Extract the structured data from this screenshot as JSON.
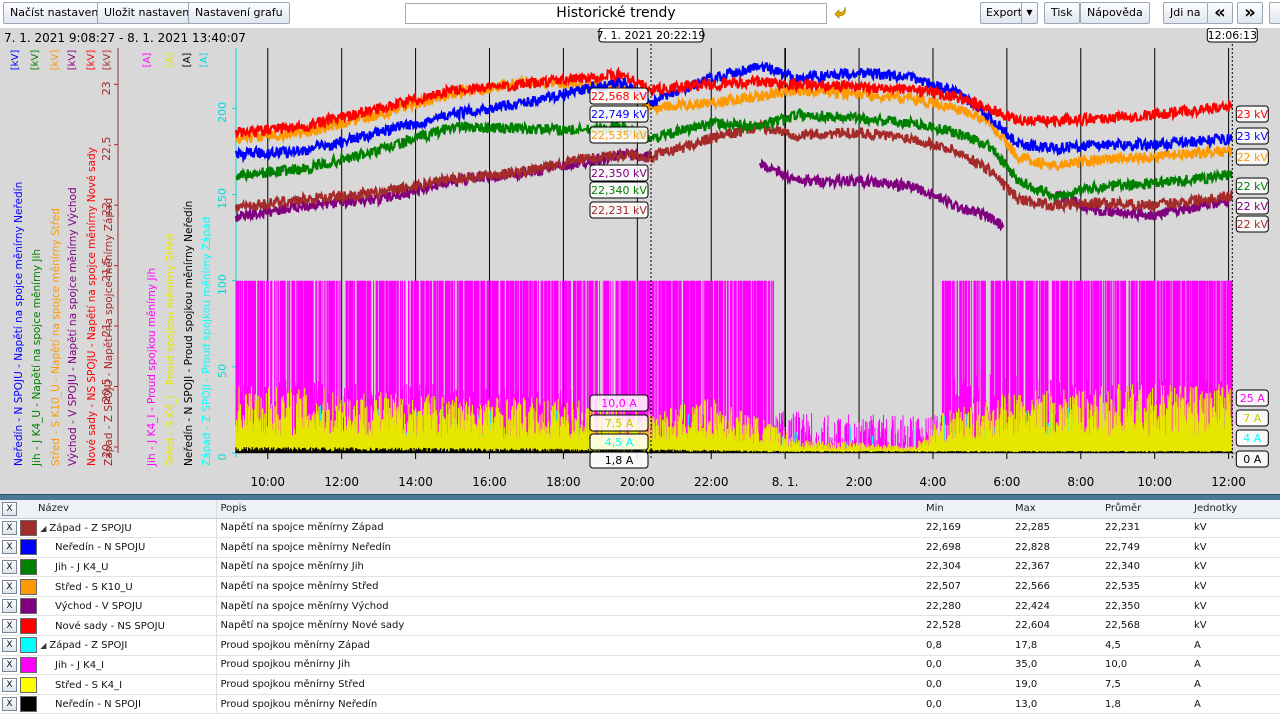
{
  "toolbar": {
    "load_label": "Načíst nastavení",
    "save_label": "Uložit nastavení",
    "chart_settings_label": "Nastavení grafu",
    "title": "Historické trendy",
    "export_label": "Export",
    "print_label": "Tisk",
    "help_label": "Nápověda",
    "goto_label": "Jdi na",
    "prev_label": "«",
    "next_label": "»"
  },
  "chart_data": {
    "type": "line",
    "time_range": "7. 1. 2021 9:08:27 - 8. 1. 2021 13:40:07",
    "cursor_left": "7. 1. 2021 20:22:19",
    "cursor_right": "12:06:13",
    "x_ticks": [
      "10:00",
      "12:00",
      "14:00",
      "16:00",
      "18:00",
      "20:00",
      "22:00",
      "8. 1.",
      "2:00",
      "4:00",
      "6:00",
      "8:00",
      "10:00",
      "12:00"
    ],
    "x_hours": [
      10,
      12,
      14,
      16,
      18,
      20,
      22,
      24,
      26,
      28,
      30,
      32,
      34,
      36
    ],
    "x_range_hours": [
      9.14,
      36.2
    ],
    "cursor_left_hour": 20.37,
    "cursor_right_hour": 36.1,
    "voltage_axis": {
      "unit": "[kV]",
      "ticks": [
        20,
        20.5,
        21,
        21.5,
        22,
        22.5,
        23
      ],
      "range": [
        19.95,
        23.3
      ]
    },
    "current_axis": {
      "unit": "[A]",
      "ticks": [
        0,
        50,
        100,
        150,
        200
      ],
      "range": [
        0,
        235
      ]
    },
    "axis_units": [
      {
        "text": "[kV]",
        "color": "#0000ff"
      },
      {
        "text": "[kV]",
        "color": "#008000"
      },
      {
        "text": "[kV]",
        "color": "#ff9900"
      },
      {
        "text": "[kV]",
        "color": "#800080"
      },
      {
        "text": "[kV]",
        "color": "#ff0000"
      },
      {
        "text": "[kV]",
        "color": "#a52a2a"
      },
      {
        "text": "[A]",
        "color": "#ff00ff"
      },
      {
        "text": "[A]",
        "color": "#e6e600"
      },
      {
        "text": "[A]",
        "color": "#000000"
      },
      {
        "text": "[A]",
        "color": "#00d8d8"
      }
    ],
    "series": [
      {
        "name": "Neředín - N SPOJU - Napětí na spojce měnírny Neředín",
        "color": "#0000ff",
        "unit": "kV",
        "axis": "kV",
        "points": [
          [
            9.14,
            22.42
          ],
          [
            11,
            22.45
          ],
          [
            13,
            22.6
          ],
          [
            15,
            22.75
          ],
          [
            17,
            22.85
          ],
          [
            18.5,
            22.95
          ],
          [
            19.6,
            23.02
          ],
          [
            20.4,
            22.85
          ],
          [
            22,
            23.05
          ],
          [
            23.3,
            23.15
          ],
          [
            24.3,
            23.05
          ],
          [
            26,
            23.1
          ],
          [
            27.5,
            23.05
          ],
          [
            28.6,
            22.93
          ],
          [
            29.5,
            22.75
          ],
          [
            30.3,
            22.5
          ],
          [
            31.3,
            22.47
          ],
          [
            32.5,
            22.5
          ],
          [
            34,
            22.5
          ],
          [
            36.1,
            22.55
          ]
        ],
        "cursor_left": "22,749 kV",
        "cursor_right": "23 kV"
      },
      {
        "name": "Jih - J K4_U - Napětí na spojce měnírny Jih",
        "color": "#008000",
        "unit": "kV",
        "axis": "kV",
        "points": [
          [
            9.14,
            22.25
          ],
          [
            11,
            22.3
          ],
          [
            13,
            22.45
          ],
          [
            15,
            22.65
          ],
          [
            17,
            22.63
          ],
          [
            18.5,
            22.62
          ],
          [
            19.6,
            22.65
          ],
          [
            20.4,
            22.55
          ],
          [
            22,
            22.68
          ],
          [
            23.3,
            22.65
          ],
          [
            24.3,
            22.75
          ],
          [
            26,
            22.72
          ],
          [
            27.5,
            22.68
          ],
          [
            28.6,
            22.6
          ],
          [
            29.5,
            22.5
          ],
          [
            30.3,
            22.2
          ],
          [
            31.3,
            22.08
          ],
          [
            32.5,
            22.15
          ],
          [
            34,
            22.18
          ],
          [
            36.1,
            22.25
          ]
        ],
        "cursor_left": "22,340 kV",
        "cursor_right": "22 kV"
      },
      {
        "name": "Střed - S K10_U - Napětí na spojce měnírny Střed",
        "color": "#ff9900",
        "unit": "kV",
        "axis": "kV",
        "points": [
          [
            9.14,
            22.55
          ],
          [
            11,
            22.6
          ],
          [
            13,
            22.75
          ],
          [
            15,
            22.92
          ],
          [
            17,
            23.02
          ],
          [
            18.5,
            23.0
          ],
          [
            19.6,
            22.98
          ],
          [
            20.4,
            22.8
          ],
          [
            22,
            22.85
          ],
          [
            23.3,
            22.9
          ],
          [
            24.3,
            22.95
          ],
          [
            26,
            22.92
          ],
          [
            27.5,
            22.88
          ],
          [
            28.6,
            22.8
          ],
          [
            29.5,
            22.7
          ],
          [
            30.3,
            22.4
          ],
          [
            31.3,
            22.32
          ],
          [
            32.5,
            22.38
          ],
          [
            34,
            22.4
          ],
          [
            36.1,
            22.45
          ]
        ],
        "cursor_left": "22,535 kV",
        "cursor_right": "22 kV"
      },
      {
        "name": "Východ - V SPOJU - Napětí na spojce měnírny Východ",
        "color": "#800080",
        "unit": "kV",
        "axis": "kV",
        "points": [
          [
            9.14,
            21.9
          ],
          [
            11,
            22.0
          ],
          [
            13,
            22.05
          ],
          [
            15,
            22.2
          ],
          [
            17,
            22.27
          ],
          [
            18.5,
            22.35
          ],
          [
            19.6,
            22.42
          ],
          [
            20.3,
            22.4
          ],
          [
            20.4,
            null
          ],
          [
            23.3,
            22.35
          ],
          [
            24.3,
            22.2
          ],
          [
            26,
            22.2
          ],
          [
            27.5,
            22.15
          ],
          [
            28.6,
            22.0
          ],
          [
            29.5,
            21.9
          ],
          [
            29.9,
            21.82
          ],
          [
            30.3,
            null
          ],
          [
            31.3,
            22.08
          ],
          [
            32.5,
            21.95
          ],
          [
            34,
            21.92
          ],
          [
            36.1,
            22.05
          ]
        ],
        "cursor_left": "22,350 kV",
        "cursor_right": "22 kV"
      },
      {
        "name": "Nové sady - NS SPOJU - Napětí na spojce měnírny Nové sady",
        "color": "#ff0000",
        "unit": "kV",
        "axis": "kV",
        "points": [
          [
            9.14,
            22.6
          ],
          [
            11,
            22.65
          ],
          [
            13,
            22.8
          ],
          [
            15,
            22.95
          ],
          [
            17,
            23.0
          ],
          [
            18.5,
            23.05
          ],
          [
            19.6,
            23.08
          ],
          [
            20.4,
            22.95
          ],
          [
            22,
            23.0
          ],
          [
            23.3,
            23.02
          ],
          [
            24.3,
            23.0
          ],
          [
            26,
            22.98
          ],
          [
            27.5,
            22.95
          ],
          [
            28.6,
            22.9
          ],
          [
            29.5,
            22.8
          ],
          [
            30.3,
            22.7
          ],
          [
            31.3,
            22.7
          ],
          [
            32.5,
            22.72
          ],
          [
            34,
            22.75
          ],
          [
            36.1,
            22.82
          ]
        ],
        "cursor_left": "22,568 kV",
        "cursor_right": "23 kV"
      },
      {
        "name": "Západ - Z SPOJU - Napětí na spojce měnírny Západ",
        "color": "#a52a2a",
        "unit": "kV",
        "axis": "kV",
        "points": [
          [
            9.14,
            21.98
          ],
          [
            11,
            22.05
          ],
          [
            13,
            22.1
          ],
          [
            15,
            22.22
          ],
          [
            17,
            22.28
          ],
          [
            18.5,
            22.38
          ],
          [
            19.6,
            22.42
          ],
          [
            20.4,
            22.4
          ],
          [
            22,
            22.55
          ],
          [
            23.3,
            22.65
          ],
          [
            24.3,
            22.58
          ],
          [
            26,
            22.6
          ],
          [
            27.5,
            22.55
          ],
          [
            28.6,
            22.45
          ],
          [
            29.5,
            22.3
          ],
          [
            30.3,
            22.05
          ],
          [
            31.3,
            22.0
          ],
          [
            32.5,
            22.02
          ],
          [
            34,
            22.0
          ],
          [
            36.1,
            22.08
          ]
        ],
        "cursor_left": "22,231 kV",
        "cursor_right": "22 kV"
      },
      {
        "name": "Jih - J K4_I - Proud spojkou měnírny Jih",
        "color": "#ff00ff",
        "unit": "A",
        "axis": "A",
        "style": "noise",
        "points": [
          [
            9.14,
            55
          ],
          [
            12,
            52
          ],
          [
            15,
            50
          ],
          [
            18,
            48
          ],
          [
            20,
            40
          ],
          [
            20.4,
            20
          ],
          [
            21,
            30
          ],
          [
            23,
            25
          ],
          [
            23.8,
            8
          ],
          [
            25,
            3
          ],
          [
            27,
            2
          ],
          [
            28.2,
            2
          ],
          [
            28.6,
            60
          ],
          [
            31,
            55
          ],
          [
            34,
            55
          ],
          [
            36.1,
            52
          ]
        ],
        "cursor_left": "10,0 A",
        "cursor_right": "25 A"
      },
      {
        "name": "Střed - S K4_I - Proud spojkou měnírny Střed",
        "color": "#e6e600",
        "unit": "A",
        "axis": "A",
        "style": "noise",
        "points": [
          [
            9.14,
            25
          ],
          [
            14,
            22
          ],
          [
            18,
            20
          ],
          [
            20.4,
            15
          ],
          [
            22,
            20
          ],
          [
            23.5,
            12
          ],
          [
            24.5,
            5
          ],
          [
            27.5,
            3
          ],
          [
            28.3,
            15
          ],
          [
            30,
            22
          ],
          [
            33,
            25
          ],
          [
            36.1,
            25
          ]
        ],
        "cursor_left": "7,5 A",
        "cursor_right": "7 A"
      },
      {
        "name": "Neředín - N SPOJI - Proud spojkou měnírny Neředín",
        "color": "#000000",
        "unit": "A",
        "axis": "A",
        "style": "noise",
        "points": [
          [
            9.14,
            3
          ],
          [
            20,
            2
          ],
          [
            24,
            1
          ],
          [
            28,
            1
          ],
          [
            36.1,
            1
          ]
        ],
        "cursor_left": "1,8 A",
        "cursor_right": "0 A"
      },
      {
        "name": "Západ - Z SPOJI - Proud spojkou měnírny Západ",
        "color": "#00ffff",
        "unit": "A",
        "axis": "A",
        "style": "noise",
        "points": [
          [
            9.14,
            15
          ],
          [
            12,
            14
          ],
          [
            15,
            13
          ],
          [
            18,
            12
          ],
          [
            20,
            11
          ],
          [
            20.4,
            10
          ],
          [
            22,
            8
          ],
          [
            23.5,
            6
          ],
          [
            24.5,
            2
          ],
          [
            27.5,
            1
          ],
          [
            28.2,
            8
          ],
          [
            29,
            14
          ],
          [
            32,
            14
          ],
          [
            36.1,
            14
          ]
        ],
        "cursor_left": "4,5 A",
        "cursor_right": "4 A"
      }
    ]
  },
  "table": {
    "headers": {
      "x": "X",
      "name": "Název",
      "desc": "Popis",
      "min": "Min",
      "max": "Max",
      "avg": "Průměr",
      "unit": "Jednotky"
    },
    "rows": [
      {
        "x": "X",
        "color": "#a52a2a",
        "name": "Západ - Z SPOJU",
        "group": true,
        "desc": "Napětí na spojce měnírny Západ",
        "min": "22,169",
        "max": "22,285",
        "avg": "22,231",
        "unit": "kV"
      },
      {
        "x": "X",
        "color": "#0000ff",
        "name": "Neředín - N SPOJU",
        "group": false,
        "desc": "Napětí na spojce měnírny Neředín",
        "min": "22,698",
        "max": "22,828",
        "avg": "22,749",
        "unit": "kV"
      },
      {
        "x": "X",
        "color": "#008000",
        "name": "Jih - J K4_U",
        "group": false,
        "desc": "Napětí na spojce měnírny Jih",
        "min": "22,304",
        "max": "22,367",
        "avg": "22,340",
        "unit": "kV"
      },
      {
        "x": "X",
        "color": "#ff9900",
        "name": "Střed - S K10_U",
        "group": false,
        "desc": "Napětí na spojce měnírny Střed",
        "min": "22,507",
        "max": "22,566",
        "avg": "22,535",
        "unit": "kV"
      },
      {
        "x": "X",
        "color": "#800080",
        "name": "Východ - V SPOJU",
        "group": false,
        "desc": "Napětí na spojce měnírny Východ",
        "min": "22,280",
        "max": "22,424",
        "avg": "22,350",
        "unit": "kV"
      },
      {
        "x": "X",
        "color": "#ff0000",
        "name": "Nové sady - NS SPOJU",
        "group": false,
        "desc": "Napětí na spojce měnírny Nové sady",
        "min": "22,528",
        "max": "22,604",
        "avg": "22,568",
        "unit": "kV"
      },
      {
        "x": "X",
        "color": "#00ffff",
        "name": "Západ - Z SPOJI",
        "group": true,
        "desc": "Proud spojkou měnírny Západ",
        "min": "0,8",
        "max": "17,8",
        "avg": "4,5",
        "unit": "A"
      },
      {
        "x": "X",
        "color": "#ff00ff",
        "name": "Jih - J K4_I",
        "group": false,
        "desc": "Proud spojkou měnírny Jih",
        "min": "0,0",
        "max": "35,0",
        "avg": "10,0",
        "unit": "A"
      },
      {
        "x": "X",
        "color": "#ffff00",
        "name": "Střed - S K4_I",
        "group": false,
        "desc": "Proud spojkou měnírny Střed",
        "min": "0,0",
        "max": "19,0",
        "avg": "7,5",
        "unit": "A"
      },
      {
        "x": "X",
        "color": "#000000",
        "name": "Neředín - N SPOJI",
        "group": false,
        "desc": "Proud spojkou měnírny Neředín",
        "min": "0,0",
        "max": "13,0",
        "avg": "1,8",
        "unit": "A"
      }
    ]
  }
}
